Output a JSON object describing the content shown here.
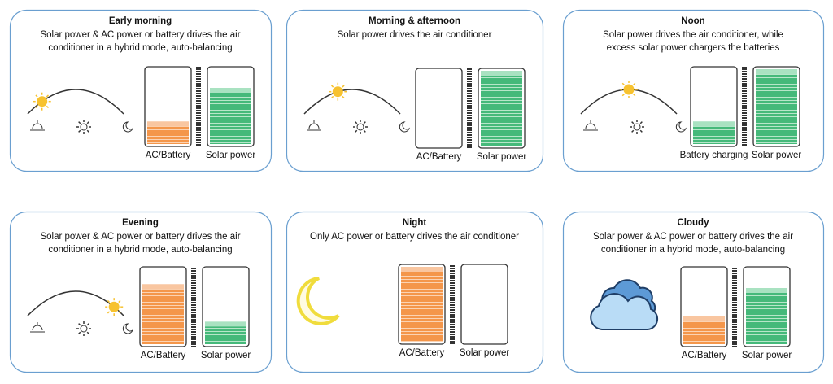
{
  "panels": [
    {
      "title": "Early morning",
      "description": [
        "Solar power & AC power or battery drives the air",
        "conditioner  in a hybrid mode, auto-balancing"
      ],
      "left_label": "AC/Battery",
      "right_label": "Solar power"
    },
    {
      "title": "Morning & afternoon",
      "description": [
        "Solar power drives the air conditioner"
      ],
      "left_label": "AC/Battery",
      "right_label": "Solar power"
    },
    {
      "title": "Noon",
      "description": [
        "Solar power drives the air conditioner, while",
        "excess solar power chargers the batteries"
      ],
      "left_label": "Battery charging",
      "right_label": "Solar power"
    },
    {
      "title": "Evening",
      "description": [
        "Solar power & AC power or battery drives the air",
        "conditioner  in a hybrid mode, auto-balancing"
      ],
      "left_label": "AC/Battery",
      "right_label": "Solar power"
    },
    {
      "title": "Night",
      "description": [
        "Only AC power or battery drives the air conditioner"
      ],
      "left_label": "AC/Battery",
      "right_label": "Solar power"
    },
    {
      "title": "Cloudy",
      "description": [
        "Solar power & AC power or battery drives the air",
        "conditioner  in a hybrid mode, auto-balancing"
      ],
      "left_label": "AC/Battery",
      "right_label": "Solar power"
    }
  ]
}
